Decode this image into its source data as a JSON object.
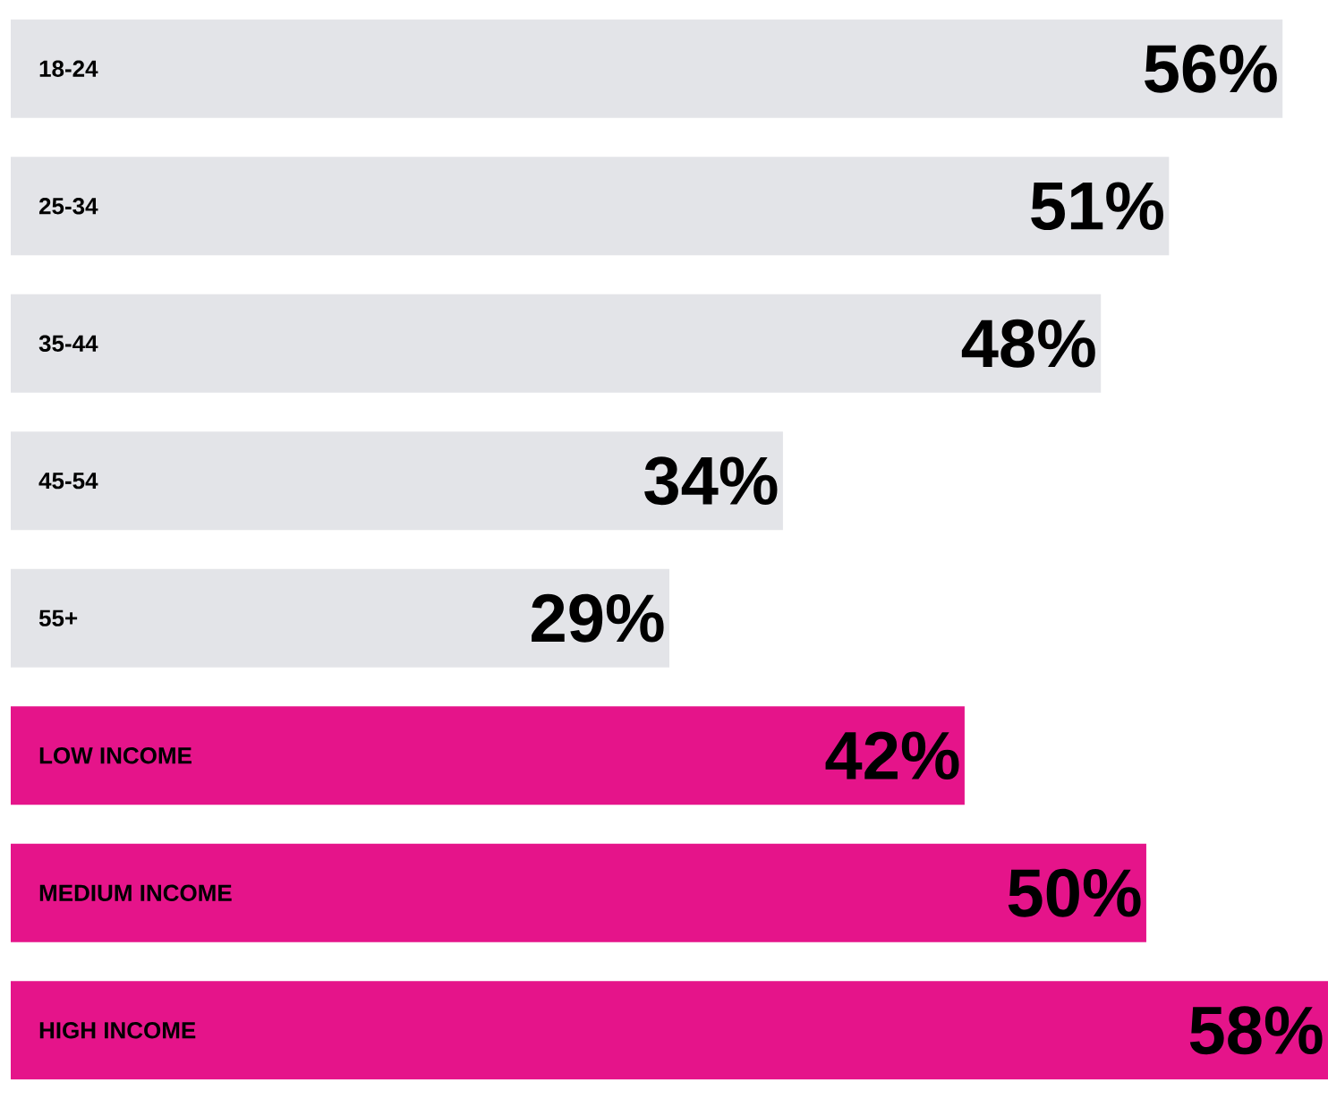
{
  "chart_data": {
    "type": "bar",
    "orientation": "horizontal",
    "categories": [
      "18-24",
      "25-34",
      "35-44",
      "45-54",
      "55+",
      "LOW INCOME",
      "MEDIUM INCOME",
      "HIGH INCOME"
    ],
    "values": [
      56,
      51,
      48,
      34,
      29,
      42,
      50,
      58
    ],
    "colors": [
      "#e3e4e8",
      "#e3e4e8",
      "#e3e4e8",
      "#e3e4e8",
      "#e3e4e8",
      "#e5148a",
      "#e5148a",
      "#e5148a"
    ],
    "value_labels": [
      "56%",
      "51%",
      "48%",
      "34%",
      "29%",
      "42%",
      "50%",
      "58%"
    ]
  }
}
